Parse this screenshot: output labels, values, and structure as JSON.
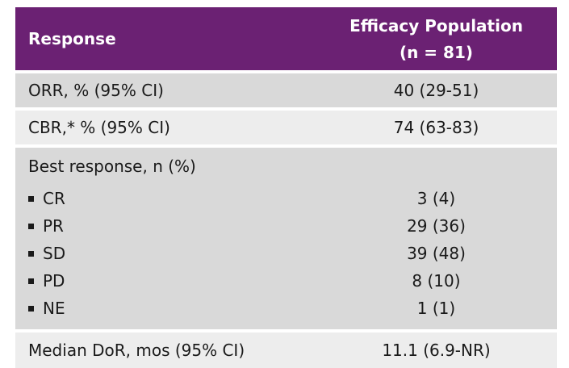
{
  "header": {
    "col1": "Response",
    "col2_line1": "Efficacy Population",
    "col2_line2": "(n = 81)"
  },
  "rows": {
    "orr": {
      "label": "ORR, % (95% CI)",
      "value": "40 (29-51)"
    },
    "cbr": {
      "label": "CBR,* % (95% CI)",
      "value": "74 (63-83)"
    },
    "best": {
      "label": "Best response, n (%)",
      "items": [
        {
          "label": "CR",
          "value": "3 (4)"
        },
        {
          "label": "PR",
          "value": "29 (36)"
        },
        {
          "label": "SD",
          "value": "39 (48)"
        },
        {
          "label": "PD",
          "value": "8 (10)"
        },
        {
          "label": "NE",
          "value": "1 (1)"
        }
      ]
    },
    "dor": {
      "label": "Median DoR, mos (95% CI)",
      "value": "11.1 (6.9-NR)"
    }
  },
  "colors": {
    "header_bg": "#6b2173",
    "row_dark": "#d9d9d9",
    "row_light": "#ededed"
  }
}
